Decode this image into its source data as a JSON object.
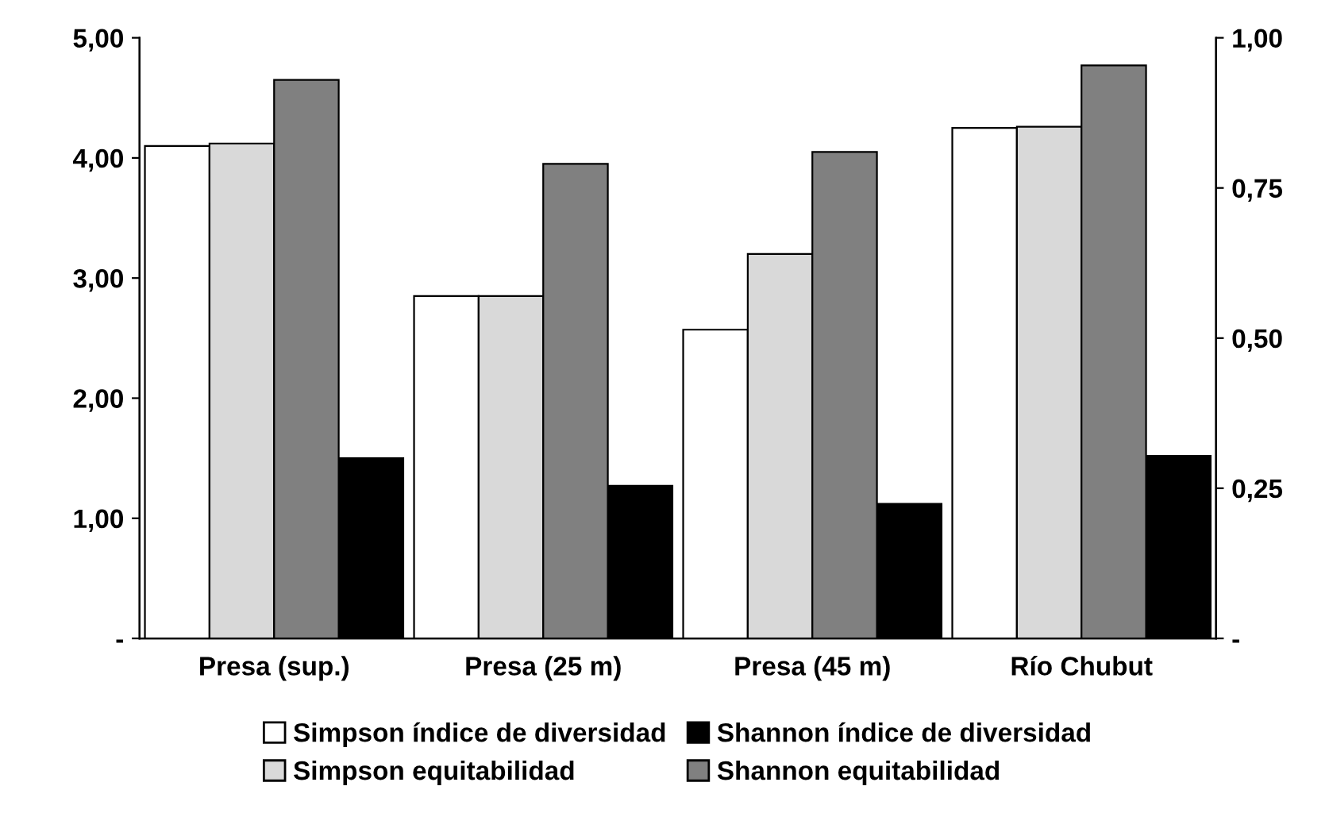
{
  "chart_data": {
    "type": "bar",
    "categories": [
      "Presa (sup.)",
      "Presa (25 m)",
      "Presa (45 m)",
      "Río Chubut"
    ],
    "series": [
      {
        "name": "Simpson índice de diversidad",
        "color": "#ffffff",
        "axis": "y2",
        "values": [
          0.82,
          0.57,
          0.514,
          0.85
        ]
      },
      {
        "name": "Simpson equitabilidad",
        "color": "#d9d9d9",
        "axis": "y2",
        "values": [
          0.824,
          0.57,
          0.64,
          0.852
        ]
      },
      {
        "name": "Shannon equitabilidad",
        "color": "#808080",
        "axis": "y2",
        "values": [
          0.93,
          0.79,
          0.81,
          0.954
        ]
      },
      {
        "name": "Shannon índice de diversidad",
        "color": "#000000",
        "axis": "y",
        "values": [
          1.5,
          1.27,
          1.12,
          1.52
        ]
      }
    ],
    "ylim": [
      0,
      5
    ],
    "yticks": [
      {
        "value": 0,
        "label": "-"
      },
      {
        "value": 1,
        "label": "1,00"
      },
      {
        "value": 2,
        "label": "2,00"
      },
      {
        "value": 3,
        "label": "3,00"
      },
      {
        "value": 4,
        "label": "4,00"
      },
      {
        "value": 5,
        "label": "5,00"
      }
    ],
    "y2lim": [
      0,
      1
    ],
    "y2ticks": [
      {
        "value": 0,
        "label": "-"
      },
      {
        "value": 0.25,
        "label": "0,25"
      },
      {
        "value": 0.5,
        "label": "0,50"
      },
      {
        "value": 0.75,
        "label": "0,75"
      },
      {
        "value": 1,
        "label": "1,00"
      }
    ],
    "legend": "bottom",
    "grid": false
  }
}
